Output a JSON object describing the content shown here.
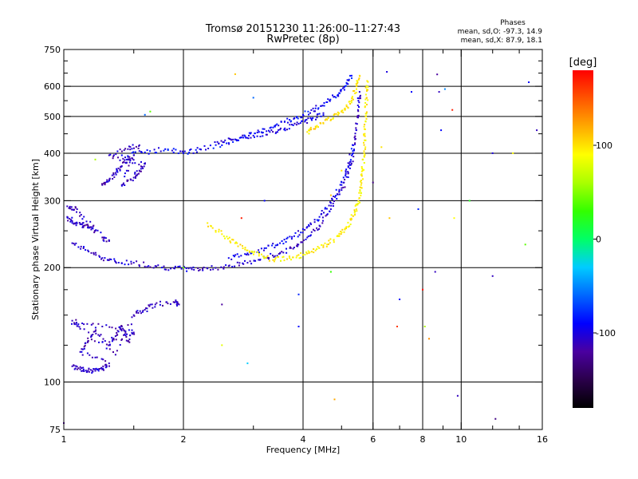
{
  "chart_data": {
    "type": "scatter",
    "title": "Tromsø 20151230 11:26:00–11:27:43",
    "subtitle": "RwPretec (8p)",
    "xlabel": "Frequency [MHz]",
    "ylabel": "Stationary phase Virtual Height [km]",
    "x_scale": "log",
    "y_scale": "log",
    "xlim": [
      1,
      16
    ],
    "ylim": [
      75,
      750
    ],
    "x_ticks": [
      {
        "value": 1,
        "label": "1"
      },
      {
        "value": 2,
        "label": "2"
      },
      {
        "value": 4,
        "label": "4"
      },
      {
        "value": 6,
        "label": "6"
      },
      {
        "value": 8,
        "label": "8"
      },
      {
        "value": 10,
        "label": "10"
      },
      {
        "value": 16,
        "label": "16"
      }
    ],
    "x_minor_ticks": [
      1.5,
      3,
      5,
      7,
      9,
      12,
      14
    ],
    "y_ticks": [
      {
        "value": 75,
        "label": "75"
      },
      {
        "value": 100,
        "label": "100"
      },
      {
        "value": 200,
        "label": "200"
      },
      {
        "value": 300,
        "label": "300"
      },
      {
        "value": 400,
        "label": "400"
      },
      {
        "value": 500,
        "label": "500"
      },
      {
        "value": 600,
        "label": "600"
      },
      {
        "value": 750,
        "label": "750"
      }
    ],
    "y_minor_ticks": [
      125,
      150,
      175,
      250,
      350,
      450,
      550,
      650,
      700
    ],
    "x_grid": [
      2,
      4,
      6,
      8,
      10
    ],
    "y_grid": [
      100,
      200,
      300,
      400,
      500,
      600
    ],
    "grid": true,
    "stats": {
      "heading": "Phases",
      "o_line": "mean, sd,O: -97.3, 14.9",
      "x_line": "mean, sd,X:  87.9, 18.1"
    },
    "colorbar": {
      "label": "[deg]",
      "range": [
        -180,
        180
      ],
      "ticks": [
        {
          "value": 100,
          "label": "100"
        },
        {
          "value": 0,
          "label": "0"
        },
        {
          "value": -100,
          "label": "-100"
        }
      ],
      "colors": [
        "#000000",
        "#2a004a",
        "#4a00a0",
        "#0000ff",
        "#0066ff",
        "#00ccff",
        "#00ff66",
        "#33ff00",
        "#aaff00",
        "#ffff00",
        "#ffaa00",
        "#ff5500",
        "#ff0000"
      ]
    },
    "series": [
      {
        "trace": "lower-F-trace",
        "phase": -105,
        "points": [
          [
            1.05,
            232
          ],
          [
            1.15,
            222
          ],
          [
            1.25,
            212
          ],
          [
            1.35,
            207
          ],
          [
            1.5,
            206
          ],
          [
            1.7,
            202
          ],
          [
            1.9,
            199
          ],
          [
            2.1,
            198
          ],
          [
            2.3,
            199
          ],
          [
            2.6,
            202
          ],
          [
            2.9,
            206
          ],
          [
            3.2,
            212
          ],
          [
            3.5,
            218
          ],
          [
            3.8,
            226
          ],
          [
            4.1,
            240
          ],
          [
            4.4,
            258
          ],
          [
            4.7,
            285
          ],
          [
            5.0,
            320
          ],
          [
            5.2,
            355
          ],
          [
            5.35,
            400
          ],
          [
            5.45,
            460
          ],
          [
            5.5,
            520
          ],
          [
            5.55,
            580
          ]
        ]
      },
      {
        "trace": "lower-F-upper-branch",
        "phase": -95,
        "points": [
          [
            2.6,
            212
          ],
          [
            2.9,
            218
          ],
          [
            3.2,
            225
          ],
          [
            3.5,
            232
          ],
          [
            3.8,
            242
          ],
          [
            4.1,
            256
          ],
          [
            4.4,
            272
          ],
          [
            4.7,
            296
          ],
          [
            5.0,
            330
          ],
          [
            5.2,
            370
          ],
          [
            5.35,
            420
          ]
        ]
      },
      {
        "trace": "upper-F-trace",
        "phase": -90,
        "points": [
          [
            1.4,
            395
          ],
          [
            1.6,
            402
          ],
          [
            1.8,
            410
          ],
          [
            2.0,
            400
          ],
          [
            2.2,
            410
          ],
          [
            2.5,
            420
          ],
          [
            2.8,
            440
          ],
          [
            3.1,
            455
          ],
          [
            3.4,
            470
          ],
          [
            3.7,
            490
          ],
          [
            4.0,
            505
          ],
          [
            4.3,
            525
          ],
          [
            4.6,
            545
          ],
          [
            4.9,
            570
          ],
          [
            5.1,
            600
          ],
          [
            5.3,
            640
          ]
        ]
      },
      {
        "trace": "upper-F-lower-branch",
        "phase": -100,
        "points": [
          [
            2.4,
            428
          ],
          [
            2.7,
            435
          ],
          [
            3.0,
            445
          ],
          [
            3.3,
            455
          ],
          [
            3.6,
            465
          ],
          [
            3.9,
            478
          ],
          [
            4.2,
            492
          ],
          [
            4.5,
            510
          ]
        ]
      },
      {
        "trace": "upper-F-cluster",
        "phase": -110,
        "points": [
          [
            1.25,
            330
          ],
          [
            1.3,
            340
          ],
          [
            1.35,
            355
          ],
          [
            1.4,
            370
          ],
          [
            1.45,
            385
          ],
          [
            1.5,
            395
          ],
          [
            1.4,
            330
          ],
          [
            1.5,
            345
          ],
          [
            1.55,
            360
          ],
          [
            1.6,
            375
          ],
          [
            1.3,
            395
          ],
          [
            1.45,
            410
          ],
          [
            1.55,
            420
          ]
        ]
      },
      {
        "trace": "x-mode-lower-F",
        "phase": 95,
        "points": [
          [
            2.3,
            262
          ],
          [
            2.5,
            245
          ],
          [
            2.7,
            232
          ],
          [
            2.9,
            222
          ],
          [
            3.1,
            215
          ],
          [
            3.4,
            210
          ],
          [
            3.7,
            212
          ],
          [
            4.0,
            216
          ],
          [
            4.3,
            222
          ],
          [
            4.6,
            230
          ],
          [
            4.9,
            242
          ],
          [
            5.1,
            252
          ],
          [
            5.3,
            268
          ],
          [
            5.45,
            285
          ],
          [
            5.55,
            305
          ],
          [
            5.6,
            330
          ],
          [
            5.65,
            360
          ],
          [
            5.7,
            400
          ],
          [
            5.72,
            450
          ],
          [
            5.75,
            500
          ],
          [
            5.78,
            560
          ],
          [
            5.8,
            620
          ]
        ]
      },
      {
        "trace": "x-mode-upper-F",
        "phase": 100,
        "points": [
          [
            4.1,
            455
          ],
          [
            4.3,
            470
          ],
          [
            4.6,
            490
          ],
          [
            4.9,
            505
          ],
          [
            5.1,
            520
          ],
          [
            5.3,
            550
          ],
          [
            5.45,
            600
          ],
          [
            5.55,
            640
          ]
        ]
      },
      {
        "trace": "E-region-trace",
        "phase": -110,
        "points": [
          [
            1.05,
            110
          ],
          [
            1.1,
            108
          ],
          [
            1.15,
            107
          ],
          [
            1.2,
            107
          ],
          [
            1.25,
            108
          ],
          [
            1.3,
            112
          ],
          [
            1.1,
            120
          ],
          [
            1.15,
            128
          ],
          [
            1.2,
            136
          ],
          [
            1.3,
            125
          ],
          [
            1.35,
            132
          ],
          [
            1.4,
            140
          ],
          [
            1.45,
            128
          ],
          [
            1.5,
            135
          ],
          [
            1.25,
            140
          ],
          [
            1.05,
            145
          ],
          [
            1.1,
            138
          ],
          [
            1.35,
            118
          ],
          [
            1.5,
            150
          ],
          [
            1.6,
            155
          ],
          [
            1.7,
            160
          ],
          [
            1.9,
            162
          ],
          [
            1.95,
            160
          ]
        ]
      },
      {
        "trace": "low-F-lower-branch",
        "phase": -110,
        "points": [
          [
            1.02,
            272
          ],
          [
            1.05,
            265
          ],
          [
            1.1,
            260
          ],
          [
            1.15,
            255
          ],
          [
            1.2,
            250
          ],
          [
            1.02,
            290
          ],
          [
            1.08,
            285
          ],
          [
            1.25,
            240
          ],
          [
            1.3,
            235
          ]
        ]
      }
    ],
    "scatter_points": [
      [
        1.6,
        505,
        -60
      ],
      [
        1.65,
        515,
        40
      ],
      [
        1.2,
        385,
        60
      ],
      [
        2.7,
        646,
        110
      ],
      [
        2.8,
        270,
        170
      ],
      [
        2.5,
        160,
        -120
      ],
      [
        2.5,
        125,
        80
      ],
      [
        2.9,
        112,
        -30
      ],
      [
        3.9,
        170,
        -80
      ],
      [
        3.9,
        140,
        -90
      ],
      [
        4.7,
        195,
        30
      ],
      [
        4.8,
        90,
        120
      ],
      [
        6.0,
        335,
        -130
      ],
      [
        6.3,
        415,
        100
      ],
      [
        6.5,
        655,
        -100
      ],
      [
        6.6,
        270,
        110
      ],
      [
        6.9,
        140,
        160
      ],
      [
        7.0,
        165,
        -90
      ],
      [
        7.8,
        285,
        -80
      ],
      [
        8.0,
        175,
        175
      ],
      [
        8.1,
        140,
        60
      ],
      [
        8.3,
        130,
        130
      ],
      [
        8.6,
        195,
        -110
      ],
      [
        8.7,
        645,
        -120
      ],
      [
        8.8,
        580,
        -110
      ],
      [
        8.9,
        460,
        -90
      ],
      [
        9.1,
        590,
        -50
      ],
      [
        9.5,
        520,
        170
      ],
      [
        9.6,
        270,
        90
      ],
      [
        9.8,
        92,
        -110
      ],
      [
        10.5,
        300,
        20
      ],
      [
        12.0,
        190,
        -110
      ],
      [
        12.0,
        400,
        -100
      ],
      [
        13.5,
        400,
        90
      ],
      [
        14.5,
        230,
        40
      ],
      [
        14.8,
        615,
        -90
      ],
      [
        15.5,
        460,
        -110
      ],
      [
        1.0,
        78,
        -120
      ],
      [
        12.2,
        80,
        -130
      ],
      [
        7.5,
        580,
        -90
      ],
      [
        5.0,
        360,
        100
      ],
      [
        4.7,
        310,
        110
      ],
      [
        3.2,
        300,
        -90
      ],
      [
        3.0,
        560,
        -60
      ],
      [
        2.0,
        200,
        40
      ]
    ]
  }
}
